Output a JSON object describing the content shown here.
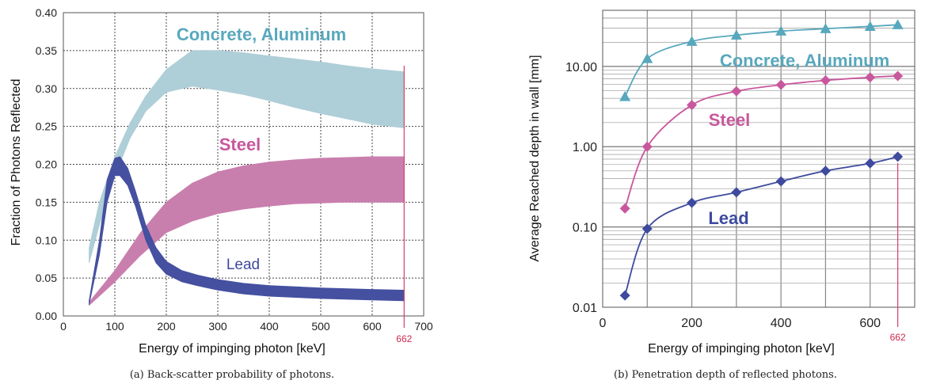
{
  "colors": {
    "concrete": "#58a8bd",
    "concrete_band": "#aeced8",
    "steel": "#c9579d",
    "steel_band": "#c97fae",
    "lead": "#3e4a9e",
    "lead_band": "#4550a0",
    "marker_line": "#d0406a"
  },
  "chart_data": [
    {
      "type": "area",
      "xlabel": "Energy of impinging photon  [keV]",
      "ylabel": "Fraction of Photons Reflected",
      "caption": "(a) Back-scatter probability of photons.",
      "xlim": [
        0,
        700
      ],
      "ylim": [
        0,
        0.4
      ],
      "xticks": [
        "0",
        "100",
        "200",
        "300",
        "400",
        "500",
        "600",
        "700"
      ],
      "yticks": [
        "0.00",
        "0.05",
        "0.10",
        "0.15",
        "0.20",
        "0.25",
        "0.30",
        "0.35",
        "0.40"
      ],
      "grid": true,
      "marker": {
        "x": 662,
        "label": "662"
      },
      "series": [
        {
          "name": "Concrete, Aluminum",
          "x": [
            50,
            70,
            100,
            130,
            160,
            200,
            250,
            300,
            350,
            400,
            450,
            500,
            550,
            600,
            662
          ],
          "upper": [
            0.09,
            0.15,
            0.21,
            0.255,
            0.29,
            0.325,
            0.35,
            0.35,
            0.347,
            0.343,
            0.339,
            0.335,
            0.33,
            0.326,
            0.322
          ],
          "lower": [
            0.07,
            0.12,
            0.185,
            0.235,
            0.27,
            0.295,
            0.303,
            0.298,
            0.292,
            0.284,
            0.275,
            0.267,
            0.26,
            0.253,
            0.248
          ]
        },
        {
          "name": "Steel",
          "x": [
            50,
            100,
            150,
            200,
            250,
            300,
            350,
            400,
            450,
            500,
            550,
            600,
            662
          ],
          "upper": [
            0.018,
            0.06,
            0.11,
            0.15,
            0.175,
            0.19,
            0.198,
            0.203,
            0.206,
            0.208,
            0.209,
            0.21,
            0.21
          ],
          "lower": [
            0.014,
            0.045,
            0.08,
            0.11,
            0.125,
            0.135,
            0.141,
            0.145,
            0.148,
            0.149,
            0.15,
            0.15,
            0.15
          ]
        },
        {
          "name": "Lead",
          "x": [
            50,
            70,
            85,
            100,
            110,
            125,
            140,
            160,
            180,
            200,
            230,
            260,
            300,
            350,
            400,
            500,
            600,
            662
          ],
          "upper": [
            0.02,
            0.1,
            0.18,
            0.208,
            0.21,
            0.195,
            0.165,
            0.12,
            0.09,
            0.072,
            0.06,
            0.054,
            0.048,
            0.043,
            0.04,
            0.037,
            0.035,
            0.034
          ],
          "lower": [
            0.015,
            0.08,
            0.15,
            0.185,
            0.185,
            0.172,
            0.145,
            0.1,
            0.07,
            0.055,
            0.045,
            0.04,
            0.034,
            0.029,
            0.026,
            0.023,
            0.021,
            0.02
          ]
        }
      ]
    },
    {
      "type": "line",
      "xlabel": "Energy of impinging photon  [keV]",
      "ylabel": "Average Reached depth in wall  [mm]",
      "caption": "(b) Penetration depth of reflected photons.",
      "xlim": [
        0,
        700
      ],
      "ylim": [
        0.01,
        50
      ],
      "yscale": "log",
      "xticks": [
        "0",
        "200",
        "400",
        "600"
      ],
      "yticks": [
        "0.01",
        "0.10",
        "1.00",
        "10.00"
      ],
      "grid": true,
      "marker": {
        "x": 662,
        "label": "662"
      },
      "series": [
        {
          "name": "Concrete, Aluminum",
          "marker": "triangle",
          "x": [
            50,
            100,
            200,
            300,
            400,
            500,
            600,
            662
          ],
          "y": [
            4.2,
            12.5,
            20.5,
            24.5,
            27.5,
            29.5,
            31.5,
            33
          ]
        },
        {
          "name": "Steel",
          "marker": "diamond",
          "x": [
            50,
            100,
            200,
            300,
            400,
            500,
            600,
            662
          ],
          "y": [
            0.17,
            1.0,
            3.3,
            4.9,
            5.9,
            6.7,
            7.3,
            7.6
          ]
        },
        {
          "name": "Lead",
          "marker": "diamond",
          "x": [
            50,
            100,
            200,
            300,
            400,
            500,
            600,
            662
          ],
          "y": [
            0.014,
            0.095,
            0.2,
            0.27,
            0.37,
            0.5,
            0.62,
            0.75
          ]
        }
      ]
    }
  ]
}
